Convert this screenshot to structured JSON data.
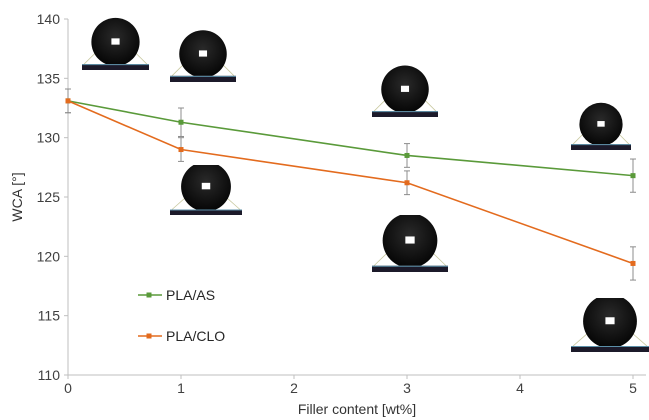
{
  "chart_data": {
    "type": "line",
    "xlabel": "Filler content [wt%]",
    "ylabel": "WCA [°]",
    "xlim": [
      0,
      5
    ],
    "ylim": [
      110,
      140
    ],
    "x_ticks": [
      "0",
      "1",
      "2",
      "3",
      "4",
      "5"
    ],
    "y_ticks": [
      "110",
      "115",
      "120",
      "125",
      "130",
      "135",
      "140"
    ],
    "grid": false,
    "legend_position": "left-bottom",
    "series": [
      {
        "name": "PLA/AS",
        "color": "#5a9a3a",
        "marker": "square",
        "x": [
          0,
          1,
          3,
          5
        ],
        "values": [
          133.1,
          131.3,
          128.5,
          126.8
        ],
        "errors": [
          1.0,
          1.2,
          1.0,
          1.4
        ]
      },
      {
        "name": "PLA/CLO",
        "color": "#e36b1e",
        "marker": "square",
        "x": [
          0,
          1,
          3,
          5
        ],
        "values": [
          133.1,
          129.0,
          126.2,
          119.4
        ],
        "errors": [
          1.0,
          1.0,
          1.0,
          1.4
        ]
      }
    ],
    "droplet_images": [
      {
        "name": "droplet-image-as-0",
        "description": "water droplet photo"
      },
      {
        "name": "droplet-image-as-1",
        "description": "water droplet photo"
      },
      {
        "name": "droplet-image-as-3",
        "description": "water droplet photo"
      },
      {
        "name": "droplet-image-as-5",
        "description": "water droplet photo"
      },
      {
        "name": "droplet-image-clo-1",
        "description": "water droplet photo"
      },
      {
        "name": "droplet-image-clo-3",
        "description": "water droplet photo"
      },
      {
        "name": "droplet-image-clo-5",
        "description": "water droplet photo"
      }
    ]
  }
}
